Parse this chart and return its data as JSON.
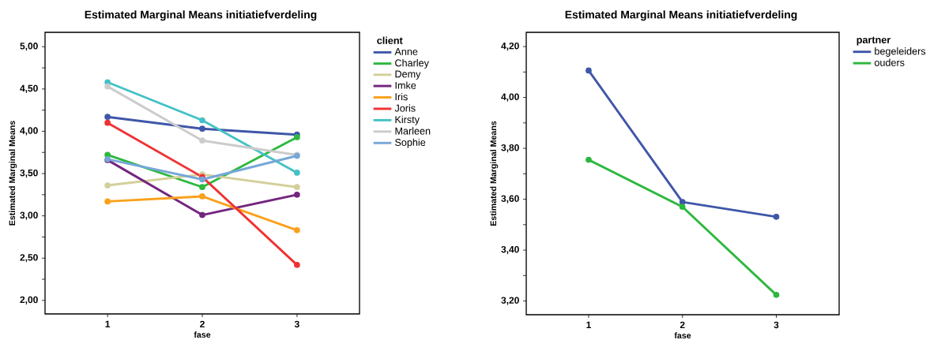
{
  "chart_data": [
    {
      "type": "line",
      "title": "Estimated Marginal Means initiatiefverdeling",
      "xlabel": "fase",
      "ylabel": "Estimated Marginal Means",
      "legend_title": "client",
      "legend": "top right",
      "grid": false,
      "marker": "circle",
      "line_style": "solid",
      "x": [
        1,
        2,
        3
      ],
      "xlim": [
        0.34,
        3.66
      ],
      "xticks": [
        1,
        2,
        3
      ],
      "ylim": [
        1.84,
        5.17
      ],
      "yticks": [
        {
          "value": 2.0,
          "label": "2,00"
        },
        {
          "value": 2.25,
          "label": null
        },
        {
          "value": 2.5,
          "label": "2,50"
        },
        {
          "value": 2.75,
          "label": null
        },
        {
          "value": 3.0,
          "label": "3,00"
        },
        {
          "value": 3.25,
          "label": null
        },
        {
          "value": 3.5,
          "label": "3,50"
        },
        {
          "value": 3.75,
          "label": null
        },
        {
          "value": 4.0,
          "label": "4,00"
        },
        {
          "value": 4.25,
          "label": null
        },
        {
          "value": 4.5,
          "label": "4,50"
        },
        {
          "value": 4.75,
          "label": null
        },
        {
          "value": 5.0,
          "label": "5,00"
        }
      ],
      "series": [
        {
          "name": "Anne",
          "color": "#3f57a8",
          "values": [
            4.17,
            4.03,
            3.96
          ]
        },
        {
          "name": "Charley",
          "color": "#2db83f",
          "values": [
            3.72,
            3.34,
            3.93
          ]
        },
        {
          "name": "Demy",
          "color": "#d4cf9a",
          "values": [
            3.36,
            3.49,
            3.34
          ]
        },
        {
          "name": "Imke",
          "color": "#74257f",
          "values": [
            3.66,
            3.01,
            3.25
          ]
        },
        {
          "name": "Iris",
          "color": "#f9a11b",
          "values": [
            3.17,
            3.23,
            2.83
          ]
        },
        {
          "name": "Joris",
          "color": "#ef3234",
          "values": [
            4.1,
            3.46,
            2.42
          ]
        },
        {
          "name": "Kirsty",
          "color": "#44c1c4",
          "values": [
            4.58,
            4.13,
            3.51
          ]
        },
        {
          "name": "Marleen",
          "color": "#cccccc",
          "values": [
            4.53,
            3.89,
            3.72
          ]
        },
        {
          "name": "Sophie",
          "color": "#77a7d8",
          "values": [
            3.67,
            3.43,
            3.71
          ]
        }
      ]
    },
    {
      "type": "line",
      "title": "Estimated Marginal Means initiatiefverdeling",
      "xlabel": "fase",
      "ylabel": "Estimated Marginal Means",
      "legend_title": "partner",
      "legend": "top right",
      "grid": false,
      "marker": "circle",
      "line_style": "solid",
      "x": [
        1,
        2,
        3
      ],
      "xlim": [
        0.335,
        3.67
      ],
      "xticks": [
        1,
        2,
        3
      ],
      "ylim": [
        3.146,
        4.256
      ],
      "yticks": [
        {
          "value": 3.2,
          "label": "3,20"
        },
        {
          "value": 3.3,
          "label": null
        },
        {
          "value": 3.4,
          "label": "3,40"
        },
        {
          "value": 3.5,
          "label": null
        },
        {
          "value": 3.6,
          "label": "3,60"
        },
        {
          "value": 3.7,
          "label": null
        },
        {
          "value": 3.8,
          "label": "3,80"
        },
        {
          "value": 3.9,
          "label": null
        },
        {
          "value": 4.0,
          "label": "4,00"
        },
        {
          "value": 4.1,
          "label": null
        },
        {
          "value": 4.2,
          "label": "4,20"
        }
      ],
      "series": [
        {
          "name": "begeleiders",
          "color": "#3f57a8",
          "values": [
            4.106,
            3.589,
            3.531
          ]
        },
        {
          "name": "ouders",
          "color": "#2db83f",
          "values": [
            3.755,
            3.57,
            3.224
          ]
        }
      ]
    }
  ]
}
